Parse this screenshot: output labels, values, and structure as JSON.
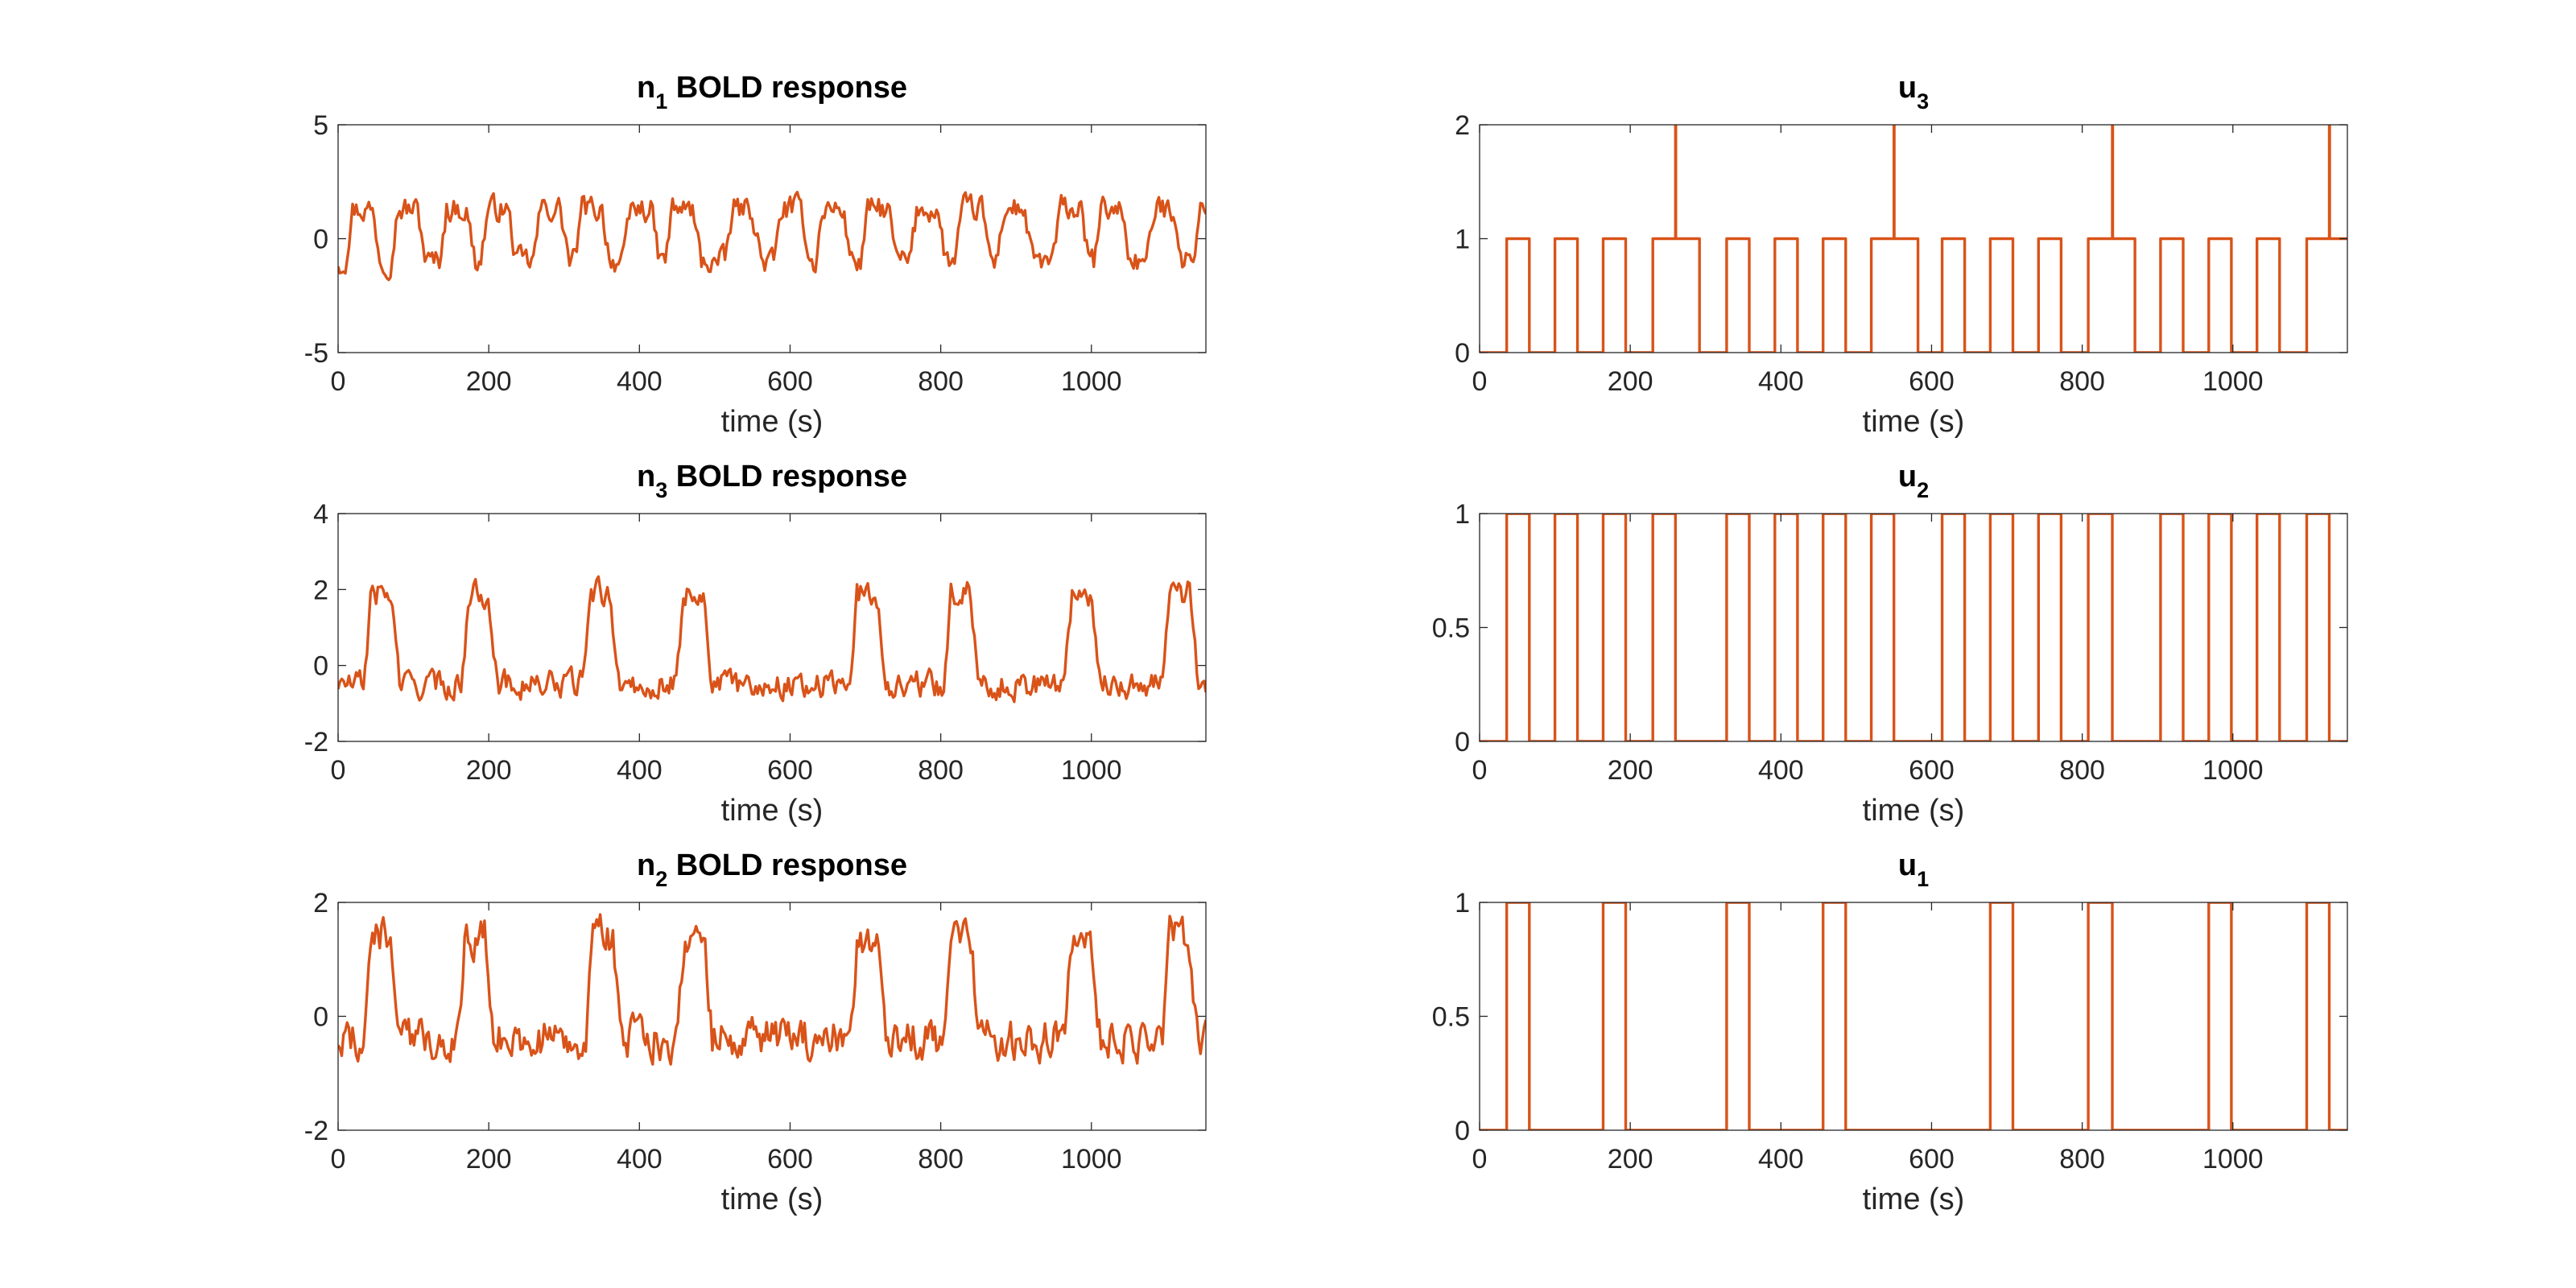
{
  "colors": {
    "line": "#d95319",
    "axis": "#262626",
    "background": "#ffffff"
  },
  "chart_data": [
    {
      "type": "line",
      "signal": "noisy",
      "title_main": "n",
      "title_sub": "1",
      "title_rest": " BOLD response",
      "xlabel": "time (s)",
      "xlim": [
        0,
        1152
      ],
      "ylim": [
        -5,
        5
      ],
      "xticks": [
        0,
        200,
        400,
        600,
        800,
        1000
      ],
      "yticks": [
        -5,
        0,
        5
      ],
      "base": -1.0,
      "amp": 2.3,
      "noise": 0.55,
      "onsets": [
        15,
        75,
        140,
        195,
        265,
        320,
        385,
        440,
        520,
        585,
        640,
        700,
        765,
        825,
        880,
        955,
        1010,
        1080,
        1140
      ],
      "block": 30
    },
    {
      "type": "line",
      "signal": "step",
      "title_main": "u",
      "title_sub": "3",
      "title_rest": "",
      "xlabel": "time (s)",
      "xlim": [
        0,
        1152
      ],
      "ylim": [
        0,
        2
      ],
      "xticks": [
        0,
        200,
        400,
        600,
        800,
        1000
      ],
      "yticks": [
        0,
        1,
        2
      ],
      "steps": [
        [
          0,
          0
        ],
        [
          36,
          1
        ],
        [
          66,
          0
        ],
        [
          100,
          1
        ],
        [
          130,
          0
        ],
        [
          164,
          1
        ],
        [
          194,
          0
        ],
        [
          230,
          1
        ],
        [
          260,
          2
        ],
        [
          260.5,
          1
        ],
        [
          292,
          0
        ],
        [
          328,
          1
        ],
        [
          358,
          0
        ],
        [
          392,
          1
        ],
        [
          422,
          0
        ],
        [
          456,
          1
        ],
        [
          486,
          0
        ],
        [
          520,
          1
        ],
        [
          550,
          2
        ],
        [
          550.5,
          1
        ],
        [
          582,
          0
        ],
        [
          614,
          1
        ],
        [
          644,
          0
        ],
        [
          678,
          1
        ],
        [
          708,
          0
        ],
        [
          742,
          1
        ],
        [
          772,
          0
        ],
        [
          808,
          1
        ],
        [
          840,
          2
        ],
        [
          840.5,
          1
        ],
        [
          870,
          0
        ],
        [
          904,
          1
        ],
        [
          934,
          0
        ],
        [
          968,
          1
        ],
        [
          998,
          0
        ],
        [
          1032,
          1
        ],
        [
          1062,
          0
        ],
        [
          1098,
          1
        ],
        [
          1128,
          2
        ],
        [
          1128.5,
          1
        ],
        [
          1152,
          1
        ]
      ]
    },
    {
      "type": "line",
      "signal": "noisy",
      "title_main": "n",
      "title_sub": "3",
      "title_rest": " BOLD response",
      "xlabel": "time (s)",
      "xlim": [
        0,
        1152
      ],
      "ylim": [
        -2,
        4
      ],
      "xticks": [
        0,
        200,
        400,
        600,
        800,
        1000
      ],
      "yticks": [
        -2,
        0,
        2,
        4
      ],
      "base": -0.5,
      "amp": 2.4,
      "noise": 0.35,
      "onsets": [
        40,
        170,
        330,
        455,
        685,
        810,
        970,
        1100
      ],
      "block": 30
    },
    {
      "type": "line",
      "signal": "step",
      "title_main": "u",
      "title_sub": "2",
      "title_rest": "",
      "xlabel": "time (s)",
      "xlim": [
        0,
        1152
      ],
      "ylim": [
        0,
        1
      ],
      "xticks": [
        0,
        200,
        400,
        600,
        800,
        1000
      ],
      "yticks": [
        0,
        0.5,
        1
      ],
      "steps": [
        [
          0,
          0
        ],
        [
          36,
          1
        ],
        [
          66,
          0
        ],
        [
          100,
          1
        ],
        [
          130,
          0
        ],
        [
          164,
          1
        ],
        [
          194,
          0
        ],
        [
          230,
          1
        ],
        [
          260,
          0
        ],
        [
          328,
          1
        ],
        [
          358,
          0
        ],
        [
          392,
          1
        ],
        [
          422,
          0
        ],
        [
          456,
          1
        ],
        [
          486,
          0
        ],
        [
          520,
          1
        ],
        [
          550,
          0
        ],
        [
          614,
          1
        ],
        [
          644,
          0
        ],
        [
          678,
          1
        ],
        [
          708,
          0
        ],
        [
          742,
          1
        ],
        [
          772,
          0
        ],
        [
          808,
          1
        ],
        [
          840,
          0
        ],
        [
          904,
          1
        ],
        [
          934,
          0
        ],
        [
          968,
          1
        ],
        [
          998,
          0
        ],
        [
          1032,
          1
        ],
        [
          1062,
          0
        ],
        [
          1098,
          1
        ],
        [
          1128,
          0
        ],
        [
          1152,
          0
        ]
      ]
    },
    {
      "type": "line",
      "signal": "noisy",
      "title_main": "n",
      "title_sub": "2",
      "title_rest": " BOLD response",
      "xlabel": "time (s)",
      "xlim": [
        0,
        1152
      ],
      "ylim": [
        -2,
        2
      ],
      "xticks": [
        0,
        200,
        400,
        600,
        800,
        1000
      ],
      "yticks": [
        -2,
        0,
        2
      ],
      "base": -0.4,
      "amp": 1.8,
      "noise": 0.35,
      "onsets": [
        40,
        165,
        335,
        455,
        685,
        810,
        970,
        1100
      ],
      "block": 30
    },
    {
      "type": "line",
      "signal": "step",
      "title_main": "u",
      "title_sub": "1",
      "title_rest": "",
      "xlabel": "time (s)",
      "xlim": [
        0,
        1152
      ],
      "ylim": [
        0,
        1
      ],
      "xticks": [
        0,
        200,
        400,
        600,
        800,
        1000
      ],
      "yticks": [
        0,
        0.5,
        1
      ],
      "steps": [
        [
          0,
          0
        ],
        [
          36,
          1
        ],
        [
          66,
          0
        ],
        [
          164,
          1
        ],
        [
          194,
          0
        ],
        [
          328,
          1
        ],
        [
          358,
          0
        ],
        [
          456,
          1
        ],
        [
          486,
          0
        ],
        [
          678,
          1
        ],
        [
          708,
          0
        ],
        [
          808,
          1
        ],
        [
          840,
          0
        ],
        [
          968,
          1
        ],
        [
          998,
          0
        ],
        [
          1098,
          1
        ],
        [
          1128,
          0
        ],
        [
          1152,
          0
        ]
      ]
    }
  ]
}
